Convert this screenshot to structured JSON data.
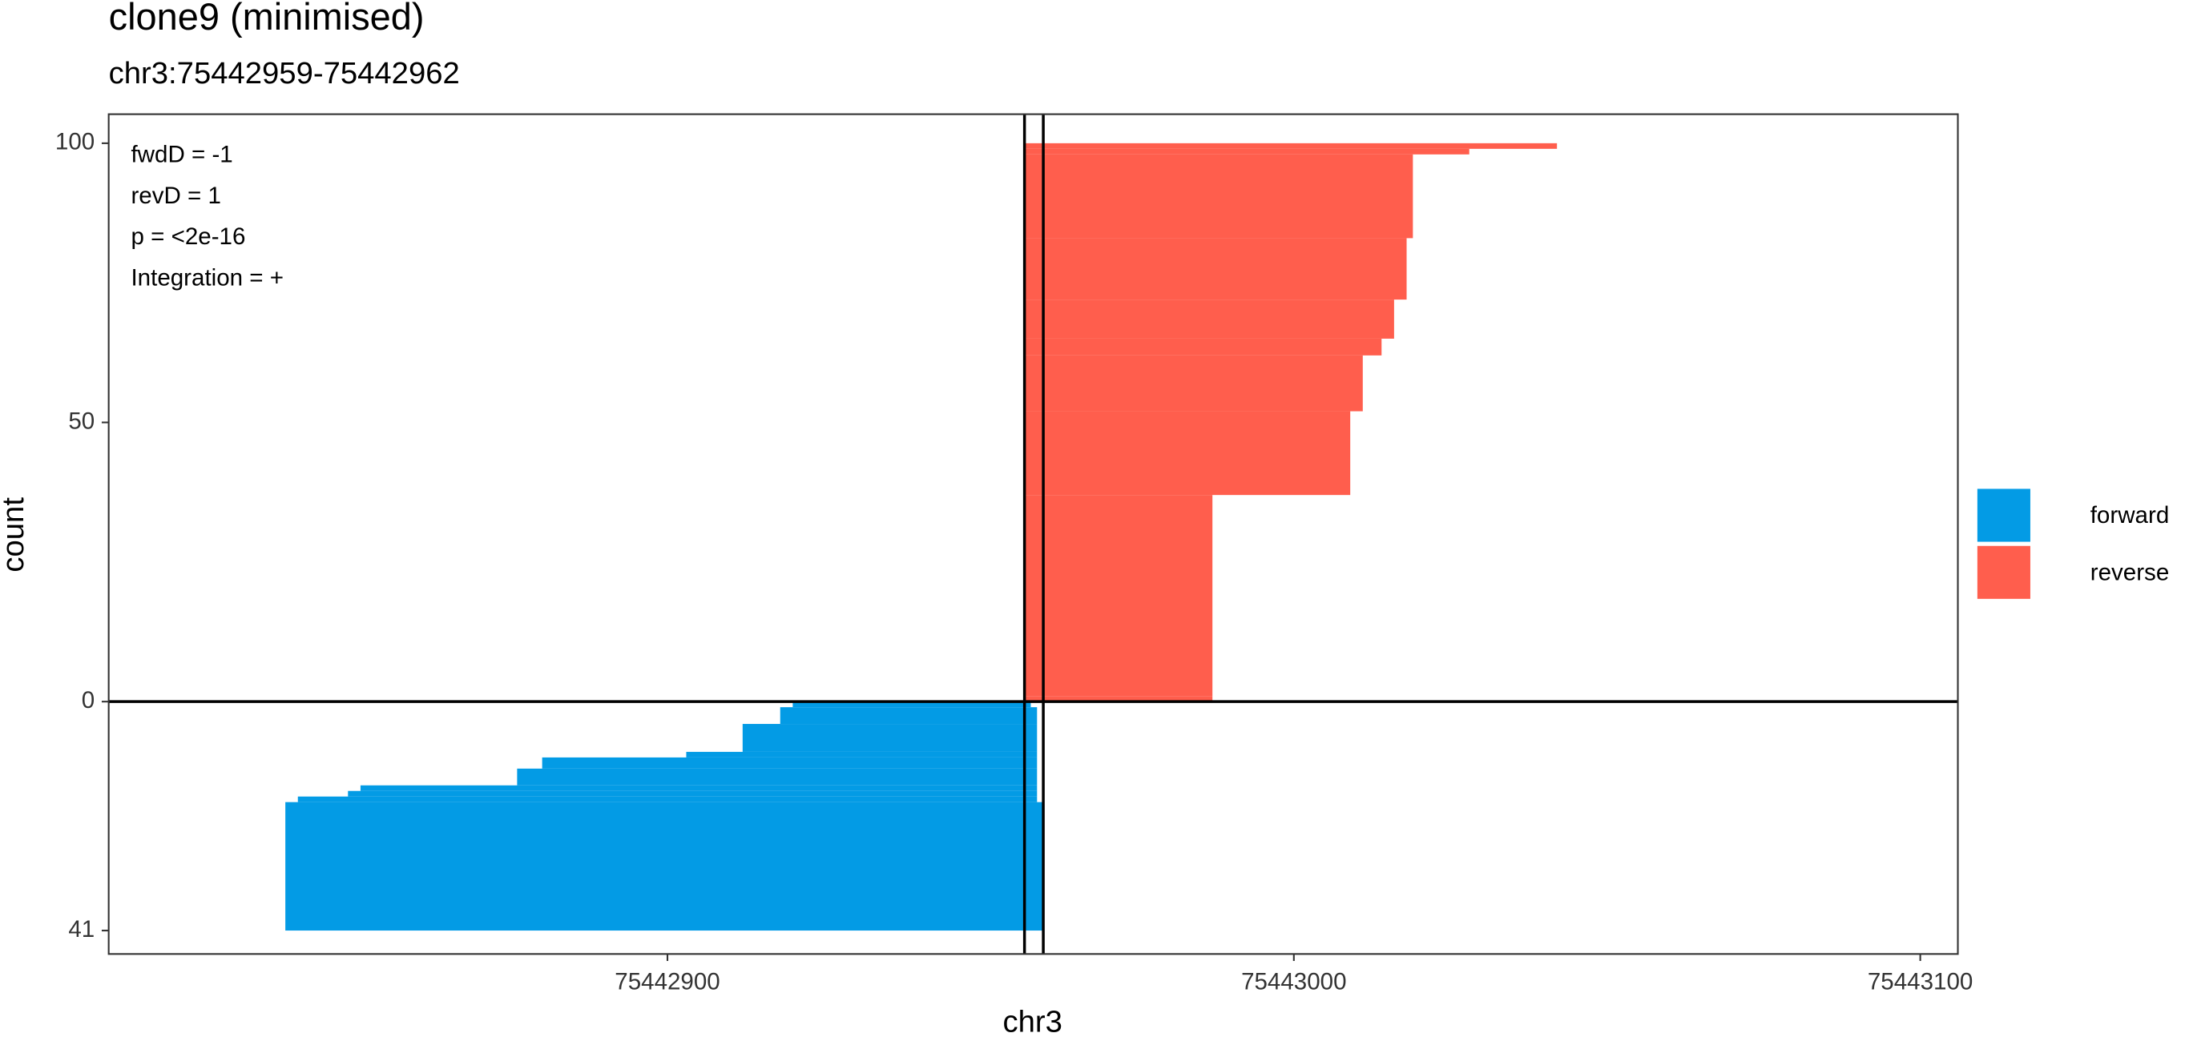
{
  "chart_data": {
    "type": "range-bar",
    "title": "clone9 (minimised)",
    "subtitle": "chr3:75442959-75442962",
    "x_label": "chr3",
    "y_label": "count",
    "annotations": [
      "fwdD = -1",
      "revD = 1",
      "p = <2e-16",
      "Integration = +"
    ],
    "series": [
      {
        "name": "forward",
        "color": "#039be5",
        "starts": [
          75442920,
          75442918,
          75442912,
          75442903,
          75442880,
          75442876,
          75442851,
          75442849,
          75442841,
          75442839
        ],
        "ends": [
          75442958,
          75442959,
          75442959,
          75442959,
          75442959,
          75442959,
          75442959,
          75442959,
          75442959,
          75442960
        ],
        "values": [
          -1,
          -3,
          -5,
          -1,
          -2,
          -3,
          -1,
          -1,
          -1,
          -23
        ]
      },
      {
        "name": "reverse",
        "color": "#ff5e4d",
        "starts": [
          75442957,
          75442957,
          75442957,
          75442957,
          75442957,
          75442957,
          75442957,
          75442957,
          75442957,
          75442957
        ],
        "ends": [
          75442987,
          75442987,
          75443009,
          75443011,
          75443014,
          75443016,
          75443018,
          75443019,
          75443028,
          75443042
        ],
        "values": [
          1,
          36,
          15,
          10,
          3,
          7,
          11,
          15,
          1,
          1
        ]
      }
    ],
    "vlines": [
      75442957,
      75442960
    ],
    "hline": 0,
    "xlim": [
      75442810.8,
      75443106
    ],
    "xticks": [
      75442900,
      75443000,
      75443100
    ],
    "ylim": [
      -45.2,
      105.2
    ],
    "yticks": [
      {
        "value": -41,
        "label": "41"
      },
      0,
      50,
      100
    ],
    "legend": "right"
  }
}
